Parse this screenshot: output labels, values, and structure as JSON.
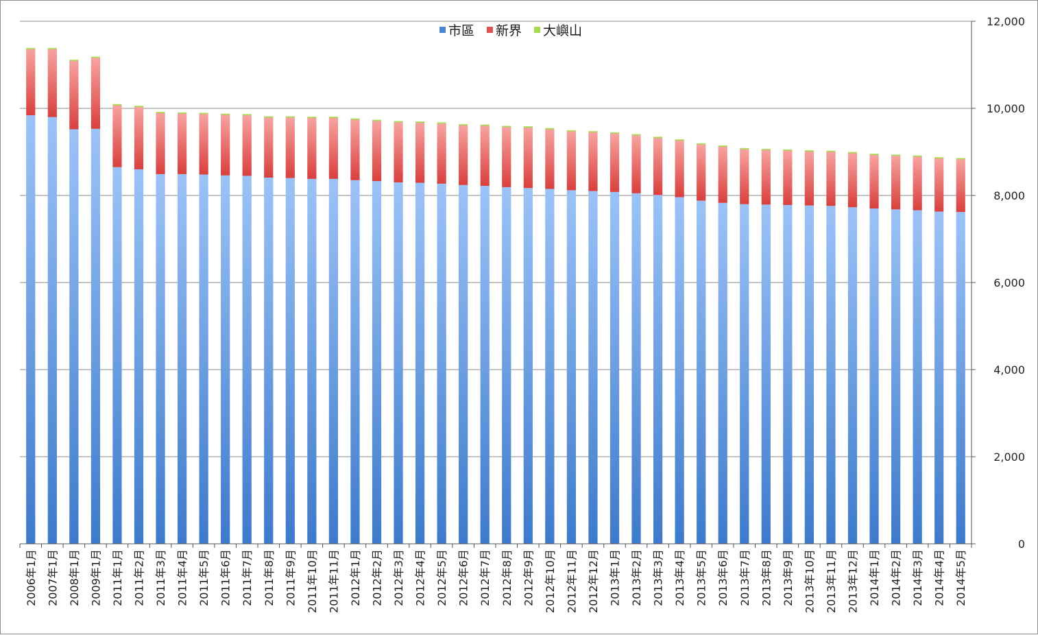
{
  "chart_data": {
    "type": "bar",
    "stacked": true,
    "y_axis_position": "right",
    "grid": true,
    "legend_position": "top",
    "ylim": [
      0,
      12000
    ],
    "yticks": [
      "0",
      "2,000",
      "4,000",
      "6,000",
      "8,000",
      "10,000",
      "12,000"
    ],
    "categories": [
      "2006年1月",
      "2007年1月",
      "2008年1月",
      "2009年1月",
      "2011年1月",
      "2011年2月",
      "2011年3月",
      "2011年4月",
      "2011年5月",
      "2011年6月",
      "2011年7月",
      "2011年8月",
      "2011年9月",
      "2011年10月",
      "2011年11月",
      "2012年1月",
      "2012年2月",
      "2012年3月",
      "2012年4月",
      "2012年5月",
      "2012年6月",
      "2012年7月",
      "2012年8月",
      "2012年9月",
      "2012年10月",
      "2012年11月",
      "2012年12月",
      "2013年1月",
      "2013年2月",
      "2013年3月",
      "2013年4月",
      "2013年5月",
      "2013年6月",
      "2013年7月",
      "2013年8月",
      "2013年9月",
      "2013年10月",
      "2013年11月",
      "2013年12月",
      "2014年1月",
      "2014年2月",
      "2014年3月",
      "2014年4月",
      "2014年5月"
    ],
    "series": [
      {
        "name": "市區",
        "color": "#4a86d4",
        "values": [
          9840,
          9800,
          9520,
          9530,
          8650,
          8600,
          8490,
          8490,
          8480,
          8460,
          8450,
          8410,
          8400,
          8380,
          8380,
          8350,
          8330,
          8300,
          8290,
          8270,
          8240,
          8220,
          8190,
          8170,
          8150,
          8120,
          8100,
          8080,
          8050,
          8010,
          7960,
          7880,
          7830,
          7800,
          7790,
          7780,
          7770,
          7760,
          7730,
          7700,
          7680,
          7660,
          7630,
          7620
        ]
      },
      {
        "name": "新界",
        "color": "#e0514f",
        "values": [
          1520,
          1560,
          1570,
          1630,
          1420,
          1430,
          1400,
          1390,
          1390,
          1390,
          1390,
          1380,
          1390,
          1400,
          1400,
          1390,
          1380,
          1380,
          1380,
          1380,
          1370,
          1380,
          1380,
          1390,
          1370,
          1350,
          1350,
          1340,
          1330,
          1310,
          1300,
          1290,
          1290,
          1260,
          1250,
          1250,
          1240,
          1240,
          1240,
          1230,
          1230,
          1230,
          1220,
          1210
        ]
      },
      {
        "name": "大嶼山",
        "color": "#a6dc4c",
        "values": [
          30,
          30,
          30,
          30,
          30,
          30,
          30,
          30,
          30,
          30,
          30,
          30,
          30,
          30,
          30,
          30,
          30,
          30,
          30,
          30,
          30,
          30,
          30,
          30,
          30,
          30,
          30,
          30,
          30,
          30,
          30,
          30,
          30,
          30,
          30,
          30,
          30,
          30,
          30,
          30,
          30,
          30,
          30,
          30
        ]
      }
    ]
  }
}
